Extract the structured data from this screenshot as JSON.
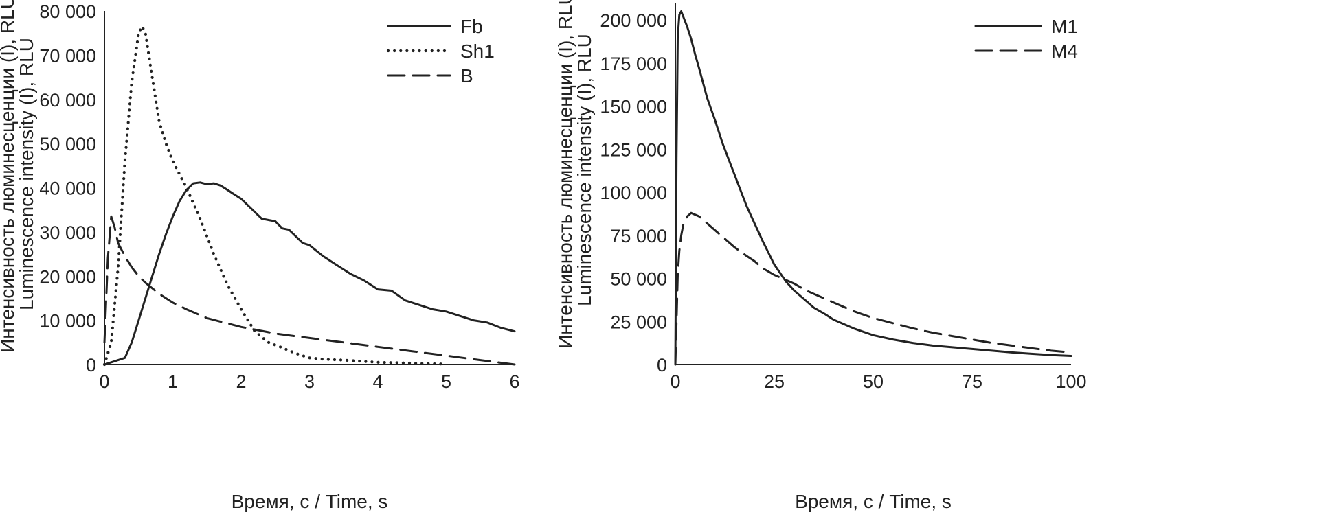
{
  "chart_data": [
    {
      "type": "line",
      "title": "",
      "xlabel": "Время, с / Time, s",
      "ylabel_lines": [
        "Интенсивность люминесценции (I), RLU",
        "Luminescence intensity (I), RLU"
      ],
      "xlim": [
        0,
        6
      ],
      "ylim": [
        0,
        80000
      ],
      "xticks": [
        0,
        1,
        2,
        3,
        4,
        5,
        6
      ],
      "xtick_labels": [
        "0",
        "1",
        "2",
        "3",
        "4",
        "5",
        "6"
      ],
      "yticks": [
        0,
        10000,
        20000,
        30000,
        40000,
        50000,
        60000,
        70000,
        80000
      ],
      "ytick_labels": [
        "0",
        "10 000",
        "20 000",
        "30 000",
        "40 000",
        "50 000",
        "60 000",
        "70 000",
        "80 000"
      ],
      "grid": false,
      "legend_position": "top-right",
      "series": [
        {
          "name": "Fb",
          "style": "solid",
          "x": [
            0,
            0.1,
            0.2,
            0.3,
            0.4,
            0.5,
            0.6,
            0.7,
            0.8,
            0.9,
            1.0,
            1.1,
            1.2,
            1.3,
            1.4,
            1.5,
            1.6,
            1.7,
            1.8,
            1.9,
            2.0,
            2.1,
            2.2,
            2.3,
            2.4,
            2.5,
            2.6,
            2.7,
            2.8,
            2.9,
            3.0,
            3.2,
            3.4,
            3.6,
            3.8,
            4.0,
            4.2,
            4.4,
            4.6,
            4.8,
            5.0,
            5.2,
            5.4,
            5.6,
            5.8,
            6.0
          ],
          "y": [
            0,
            500,
            1000,
            1500,
            5000,
            10000,
            15000,
            20000,
            25000,
            29500,
            33500,
            37000,
            39500,
            41000,
            41200,
            40800,
            41000,
            40500,
            39500,
            38500,
            37500,
            36000,
            34500,
            33000,
            32700,
            32400,
            30800,
            30500,
            29000,
            27500,
            27000,
            24500,
            22500,
            20500,
            19000,
            17000,
            16700,
            14500,
            13500,
            12500,
            12000,
            11000,
            10000,
            9500,
            8300,
            7500
          ]
        },
        {
          "name": "Sh1",
          "style": "dotted",
          "x": [
            0,
            0.1,
            0.2,
            0.3,
            0.4,
            0.5,
            0.55,
            0.6,
            0.7,
            0.8,
            0.9,
            1.0,
            1.2,
            1.4,
            1.6,
            1.8,
            2.0,
            2.2,
            2.4,
            2.6,
            2.8,
            3.0,
            3.2,
            3.5,
            3.8,
            4.0,
            4.5,
            5.0
          ],
          "y": [
            0,
            5000,
            22000,
            46000,
            64000,
            75000,
            76500,
            75000,
            65000,
            55000,
            50000,
            46000,
            40000,
            33000,
            25000,
            18000,
            12500,
            7500,
            5000,
            3800,
            2500,
            1500,
            1200,
            1000,
            700,
            500,
            300,
            100
          ]
        },
        {
          "name": "B",
          "style": "dashed",
          "x": [
            0,
            0.05,
            0.1,
            0.15,
            0.2,
            0.3,
            0.4,
            0.5,
            0.6,
            0.8,
            1.0,
            1.2,
            1.5,
            2.0,
            2.5,
            3.0,
            3.5,
            4.0,
            4.5,
            5.0,
            5.5,
            6.0
          ],
          "y": [
            5000,
            24000,
            33500,
            31000,
            27500,
            24500,
            22000,
            20000,
            18500,
            16000,
            14000,
            12500,
            10500,
            8500,
            7000,
            6000,
            5000,
            4000,
            3000,
            2000,
            1000,
            0
          ]
        }
      ]
    },
    {
      "type": "line",
      "title": "",
      "xlabel": "Время, с / Time, s",
      "ylabel_lines": [
        "Интенсивность люминесценции (I), RLU",
        "Luminescence intensity (I), RLU"
      ],
      "xlim": [
        0,
        100
      ],
      "ylim": [
        0,
        210000
      ],
      "xticks": [
        0,
        25,
        50,
        75,
        100
      ],
      "xtick_labels": [
        "0",
        "25",
        "50",
        "75",
        "100"
      ],
      "yticks": [
        0,
        25000,
        50000,
        75000,
        100000,
        125000,
        150000,
        175000,
        200000
      ],
      "ytick_labels": [
        "0",
        "25 000",
        "50 000",
        "75 000",
        "100 000",
        "125 000",
        "150 000",
        "175 000",
        "200 000"
      ],
      "grid": false,
      "legend_position": "top-right",
      "series": [
        {
          "name": "M1",
          "style": "solid",
          "x": [
            0,
            0.3,
            0.6,
            1,
            1.5,
            2,
            3,
            4,
            5,
            6,
            8,
            10,
            12,
            15,
            18,
            20,
            22,
            25,
            28,
            30,
            33,
            35,
            38,
            40,
            45,
            50,
            55,
            60,
            65,
            70,
            75,
            80,
            85,
            90,
            95,
            100
          ],
          "y": [
            0,
            120000,
            190000,
            203000,
            205000,
            202000,
            196000,
            189000,
            180000,
            172000,
            155000,
            142000,
            128000,
            110000,
            92000,
            82000,
            72000,
            58000,
            48000,
            43000,
            37000,
            33000,
            29000,
            26000,
            21000,
            17000,
            14500,
            12500,
            11000,
            10000,
            9000,
            8000,
            7000,
            6200,
            5500,
            5000
          ]
        },
        {
          "name": "M4",
          "style": "dashed",
          "x": [
            0,
            0.3,
            0.6,
            1,
            1.5,
            2,
            3,
            4,
            5,
            6,
            8,
            10,
            12,
            15,
            18,
            20,
            22,
            25,
            28,
            30,
            33,
            35,
            38,
            40,
            45,
            50,
            55,
            60,
            65,
            70,
            75,
            80,
            85,
            90,
            95,
            100
          ],
          "y": [
            0,
            25000,
            52000,
            66000,
            75000,
            81000,
            86000,
            88000,
            87000,
            86000,
            82000,
            78000,
            74000,
            68000,
            63000,
            60000,
            56000,
            52000,
            49000,
            47000,
            43000,
            41000,
            38000,
            36000,
            31000,
            27000,
            24000,
            21000,
            18500,
            16500,
            14500,
            12500,
            11000,
            9500,
            8000,
            7000
          ]
        }
      ]
    }
  ]
}
